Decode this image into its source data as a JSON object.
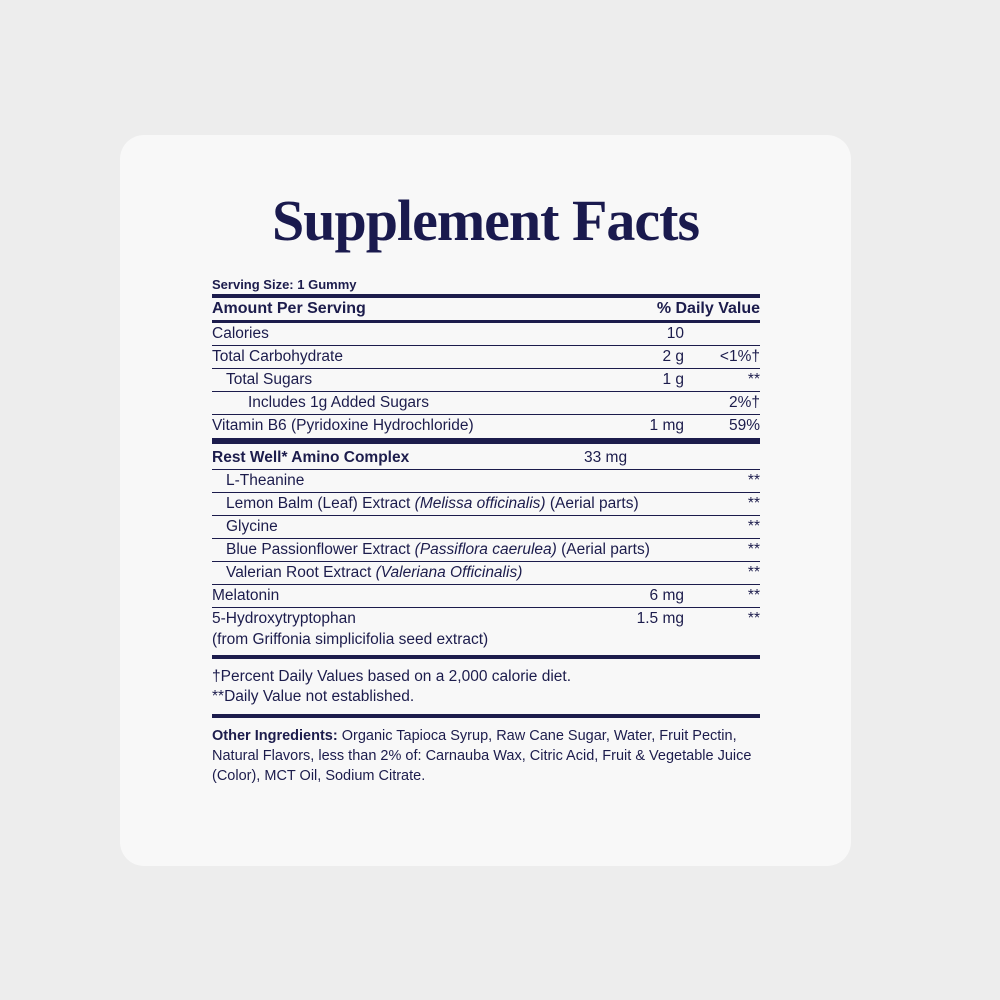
{
  "title": "Supplement Facts",
  "serving_size": "Serving Size: 1 Gummy",
  "header": {
    "amount": "Amount Per Serving",
    "dv": "% Daily Value"
  },
  "nutrients": [
    {
      "name": "Calories",
      "amount": "10",
      "dv": ""
    },
    {
      "name": "Total Carbohydrate",
      "amount": "2 g",
      "dv": "<1%†"
    },
    {
      "name": "Total Sugars",
      "amount": "1 g",
      "dv": "**"
    },
    {
      "name": "Includes 1g Added Sugars",
      "amount": "",
      "dv": "2%†"
    },
    {
      "name": "Vitamin B6 (Pyridoxine Hydrochloride)",
      "amount": "1 mg",
      "dv": "59%"
    }
  ],
  "complex": {
    "name": "Rest Well* Amino Complex",
    "amount": "33 mg"
  },
  "complex_items": [
    {
      "name": "L-Theanine",
      "latin": "",
      "suffix": "",
      "dv": "**"
    },
    {
      "name": "Lemon Balm (Leaf) Extract ",
      "latin": "(Melissa officinalis)",
      "suffix": " (Aerial parts)",
      "dv": "**"
    },
    {
      "name": "Glycine",
      "latin": "",
      "suffix": "",
      "dv": "**"
    },
    {
      "name": "Blue Passionflower Extract ",
      "latin": "(Passiflora caerulea)",
      "suffix": " (Aerial parts)",
      "dv": "**"
    },
    {
      "name": "Valerian Root Extract ",
      "latin": "(Valeriana Officinalis)",
      "suffix": "",
      "dv": "**"
    }
  ],
  "others": [
    {
      "name": "Melatonin",
      "amount": "6 mg",
      "dv": "**"
    },
    {
      "name": "5-Hydroxytryptophan",
      "name2": "(from Griffonia simplicifolia seed extract)",
      "amount": "1.5 mg",
      "dv": "**"
    }
  ],
  "footnotes": [
    "†Percent Daily Values based on a 2,000 calorie diet.",
    "**Daily Value not established."
  ],
  "other_ingredients": {
    "label": "Other Ingredients:",
    "text": " Organic Tapioca Syrup, Raw Cane Sugar, Water, Fruit Pectin, Natural Flavors, less than 2% of: Carnauba Wax, Citric Acid, Fruit & Vegetable Juice (Color), MCT Oil, Sodium Citrate."
  },
  "colors": {
    "text": "#1c1c4c",
    "card": "#f8f8f8",
    "background": "#ededed"
  }
}
